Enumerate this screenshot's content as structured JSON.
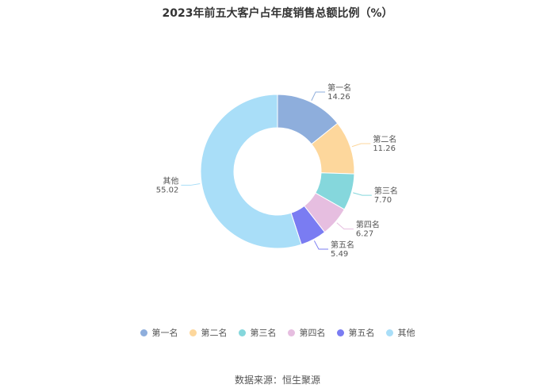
{
  "title": "2023年前五大客户占年度销售总额比例（%）",
  "source": "数据来源：恒生聚源",
  "chart_data": {
    "type": "pie",
    "donut": true,
    "legend_position": "bottom",
    "slices": [
      {
        "label": "第一名",
        "value": 14.26,
        "value_text": "14.26",
        "color": "#8eaedc"
      },
      {
        "label": "第二名",
        "value": 11.26,
        "value_text": "11.26",
        "color": "#fdd79c"
      },
      {
        "label": "第三名",
        "value": 7.7,
        "value_text": "7.70",
        "color": "#85d7dc"
      },
      {
        "label": "第四名",
        "value": 6.27,
        "value_text": "6.27",
        "color": "#e6bee0"
      },
      {
        "label": "第五名",
        "value": 5.49,
        "value_text": "5.49",
        "color": "#7a7cf2"
      },
      {
        "label": "其他",
        "value": 55.02,
        "value_text": "55.02",
        "color": "#a9def8"
      }
    ]
  }
}
